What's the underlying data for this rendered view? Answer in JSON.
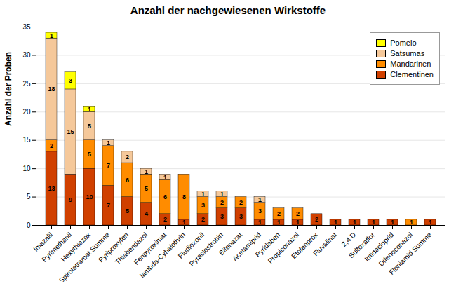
{
  "chart_data": {
    "type": "bar",
    "stacked": true,
    "title": "Anzahl der nachgewiesenen Wirkstoffe",
    "ylabel": "Anzahl der Proben",
    "categories": [
      "Imazalil",
      "Pyrimethanil",
      "Hexythiazox",
      "Spirotetramat Summe",
      "Pyriproxyfen",
      "Thiabendazol",
      "Fenpyroximat",
      "lambda-Cyhalothrin",
      "Fludioxonil",
      "Pyraclostrobin",
      "Bifenazat",
      "Acetamiprid",
      "Pyridaben",
      "Propiconazol",
      "Etofenprox",
      "Fluvalinat",
      "2,4 D",
      "Sulfoxaflor",
      "Imidacloprid",
      "Difenoconazol",
      "Floniamid Summe"
    ],
    "series": [
      {
        "name": "Clementinen",
        "color": "#D04000",
        "values": [
          13,
          9,
          10,
          7,
          5,
          4,
          2,
          1,
          2,
          3,
          3,
          1,
          1,
          1,
          2,
          1,
          1,
          1,
          1,
          0,
          1
        ]
      },
      {
        "name": "Mandarinen",
        "color": "#FF8C00",
        "values": [
          2,
          0,
          5,
          7,
          6,
          5,
          6,
          8,
          3,
          2,
          2,
          3,
          2,
          2,
          0,
          0,
          0,
          0,
          0,
          1,
          0
        ]
      },
      {
        "name": "Satsumas",
        "color": "#F5C89A",
        "values": [
          18,
          15,
          5,
          1,
          2,
          1,
          1,
          0,
          1,
          1,
          0,
          1,
          0,
          0,
          0,
          0,
          0,
          0,
          0,
          0,
          0
        ]
      },
      {
        "name": "Pomelo",
        "color": "#FFFF00",
        "values": [
          1,
          3,
          1,
          0,
          0,
          0,
          0,
          0,
          0,
          0,
          0,
          0,
          0,
          0,
          0,
          0,
          0,
          0,
          0,
          0,
          0
        ]
      }
    ],
    "ylim": [
      0,
      35
    ],
    "yticks": [
      0,
      5,
      10,
      15,
      20,
      25,
      30,
      35
    ],
    "grid": true,
    "legend": "upper right",
    "data_labels": true
  }
}
